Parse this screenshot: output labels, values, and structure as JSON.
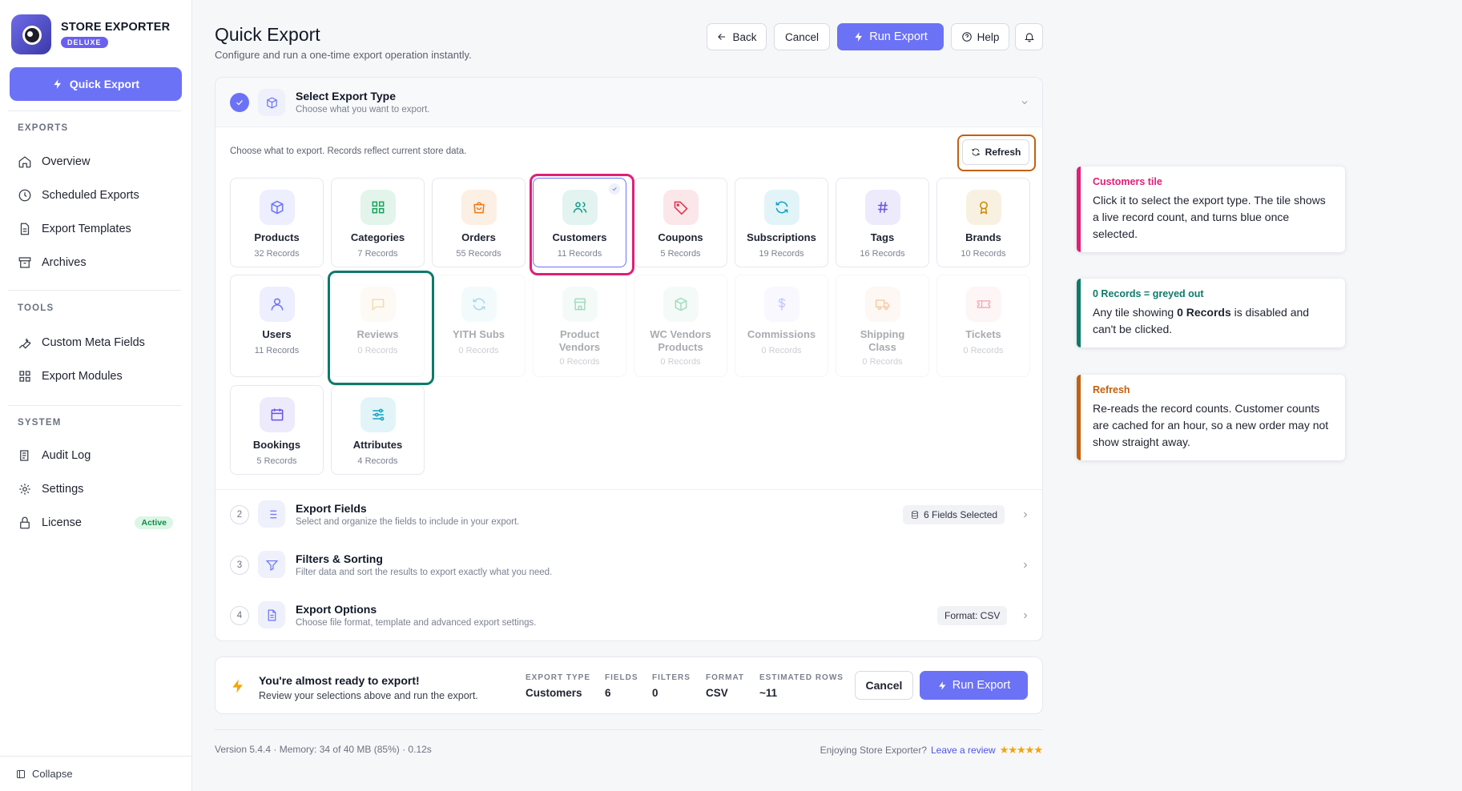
{
  "app": {
    "name": "STORE EXPORTER",
    "badge": "DELUXE",
    "quick_export_label": "Quick Export"
  },
  "sidebar": {
    "sections": [
      {
        "title": "EXPORTS",
        "items": [
          "Overview",
          "Scheduled Exports",
          "Export Templates",
          "Archives"
        ]
      },
      {
        "title": "TOOLS",
        "items": [
          "Custom Meta Fields",
          "Export Modules"
        ]
      },
      {
        "title": "SYSTEM",
        "items": [
          "Audit Log",
          "Settings",
          "License"
        ]
      }
    ],
    "license_badge": "Active",
    "collapse_label": "Collapse"
  },
  "header": {
    "title": "Quick Export",
    "subtitle": "Configure and run a one-time export operation instantly.",
    "back_label": "Back",
    "cancel_label": "Cancel",
    "run_label": "Run Export",
    "help_label": "Help"
  },
  "steps": {
    "step1": {
      "title": "Select Export Type",
      "desc": "Choose what you want to export."
    },
    "choose_text": "Choose what to export. Records reflect current store data.",
    "refresh_label": "Refresh",
    "step2": {
      "num": "2",
      "title": "Export Fields",
      "desc": "Select and organize the fields to include in your export.",
      "pill": "6 Fields Selected"
    },
    "step3": {
      "num": "3",
      "title": "Filters & Sorting",
      "desc": "Filter data and sort the results to export exactly what you need."
    },
    "step4": {
      "num": "4",
      "title": "Export Options",
      "desc": "Choose file format, template and advanced export settings.",
      "pill": "Format: CSV"
    }
  },
  "tiles": [
    {
      "label": "Products",
      "count": "32 Records",
      "icon": "box-icon",
      "color": "#6c72f5"
    },
    {
      "label": "Categories",
      "count": "7 Records",
      "icon": "grid-icon",
      "color": "#16a35a"
    },
    {
      "label": "Orders",
      "count": "55 Records",
      "icon": "bag-icon",
      "color": "#ea7a1a"
    },
    {
      "label": "Customers",
      "count": "11 Records",
      "icon": "users-icon",
      "color": "#109a85"
    },
    {
      "label": "Coupons",
      "count": "5 Records",
      "icon": "tag-icon",
      "color": "#e0304a"
    },
    {
      "label": "Subscriptions",
      "count": "19 Records",
      "icon": "refresh-icon",
      "color": "#0ea2c4"
    },
    {
      "label": "Tags",
      "count": "16 Records",
      "icon": "hash-icon",
      "color": "#6c52e8"
    },
    {
      "label": "Brands",
      "count": "10 Records",
      "icon": "award-icon",
      "color": "#c98a08"
    },
    {
      "label": "Users",
      "count": "11 Records",
      "icon": "user-icon",
      "color": "#6c72f5"
    },
    {
      "label": "Reviews",
      "count": "0 Records",
      "icon": "message-icon",
      "color": "#e0a62a"
    },
    {
      "label": "YITH Subs",
      "count": "0 Records",
      "icon": "refresh-icon",
      "color": "#0ea2c4"
    },
    {
      "label": "Product Vendors",
      "count": "0 Records",
      "icon": "store-icon",
      "color": "#16a35a"
    },
    {
      "label": "WC Vendors Products",
      "count": "0 Records",
      "icon": "box-icon",
      "color": "#16a35a"
    },
    {
      "label": "Commissions",
      "count": "0 Records",
      "icon": "dollar-icon",
      "color": "#6c72f5"
    },
    {
      "label": "Shipping Class",
      "count": "0 Records",
      "icon": "truck-icon",
      "color": "#ea7a1a"
    },
    {
      "label": "Tickets",
      "count": "0 Records",
      "icon": "ticket-icon",
      "color": "#e0304a"
    },
    {
      "label": "Bookings",
      "count": "5 Records",
      "icon": "calendar-icon",
      "color": "#6c52e8"
    },
    {
      "label": "Attributes",
      "count": "4 Records",
      "icon": "sliders-icon",
      "color": "#0ea2c4"
    }
  ],
  "ready": {
    "title": "You're almost ready to export!",
    "subtitle": "Review your selections above and run the export.",
    "stats": [
      {
        "k": "EXPORT TYPE",
        "v": "Customers"
      },
      {
        "k": "FIELDS",
        "v": "6"
      },
      {
        "k": "FILTERS",
        "v": "0"
      },
      {
        "k": "FORMAT",
        "v": "CSV"
      },
      {
        "k": "ESTIMATED ROWS",
        "v": "~11"
      }
    ],
    "cancel_label": "Cancel",
    "run_label": "Run Export"
  },
  "footer": {
    "left": "Version 5.4.4 · Memory: 34 of 40 MB (85%) · 0.12s",
    "enjoy": "Enjoying Store Exporter?",
    "review": "Leave a review",
    "stars": "★★★★★"
  },
  "callouts": [
    {
      "title": "Customers tile",
      "body": "Click it to select the export type. The tile shows a live record count, and turns blue once selected.",
      "color": "#e01f77"
    },
    {
      "title": "0 Records = greyed out",
      "body_pre": "Any tile showing ",
      "body_bold": "0 Records",
      "body_post": " is disabled and can't be clicked.",
      "color": "#0e7a6b"
    },
    {
      "title": "Refresh",
      "body": "Re-reads the record counts. Customer counts are cached for an hour, so a new order may not show straight away.",
      "color": "#c2610f"
    }
  ]
}
